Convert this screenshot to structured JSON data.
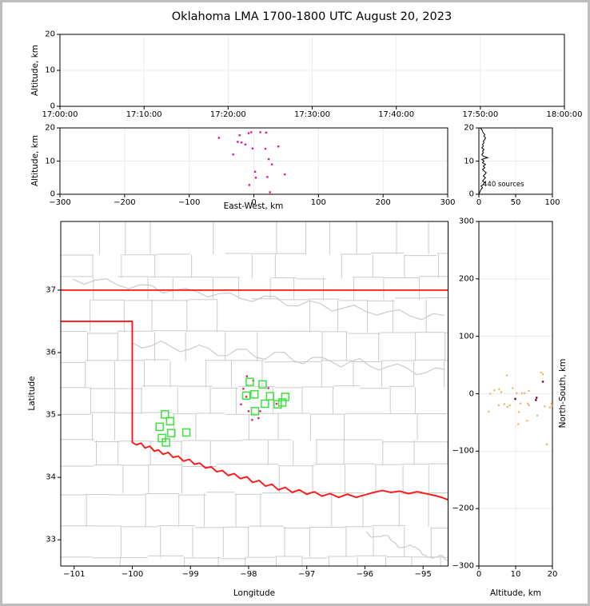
{
  "title": "Oklahoma LMA 1700-1800 UTC August 20, 2023",
  "colors": {
    "source_magenta": "#e8148c",
    "source_orange": "#f0b274",
    "source_maroon": "#6e0a1e",
    "station_green": "#3de23d",
    "state_border_red": "#ff1515",
    "county_gray": "#cbcbcb",
    "grid_gray": "#ececec",
    "frame_black": "#000000",
    "histogram_black": "#111111"
  },
  "chart_data": [
    {
      "id": "time_height",
      "type": "scatter",
      "ylabel": "Altitude, km",
      "xticks": [
        "17:00:00",
        "17:10:00",
        "17:20:00",
        "17:30:00",
        "17:40:00",
        "17:50:00",
        "18:00:00"
      ],
      "yticks": [
        0,
        10,
        20
      ],
      "ylim": [
        0,
        20
      ],
      "points": []
    },
    {
      "id": "ew_height",
      "type": "scatter",
      "xlabel": "East-West, km",
      "ylabel": "Altitude, km",
      "xlim": [
        -300,
        300
      ],
      "xticks": [
        -300,
        -200,
        -100,
        0,
        100,
        200,
        300
      ],
      "ylim": [
        0,
        20
      ],
      "yticks": [
        0,
        10,
        20
      ],
      "points": [
        [
          -54,
          17.0
        ],
        [
          -22,
          17.8
        ],
        [
          -8,
          18.4
        ],
        [
          -4,
          18.7
        ],
        [
          10,
          18.7
        ],
        [
          19,
          18.6
        ],
        [
          -25,
          15.8
        ],
        [
          -19,
          15.6
        ],
        [
          -13,
          15.0
        ],
        [
          -2,
          13.8
        ],
        [
          18,
          13.7
        ],
        [
          38,
          14.4
        ],
        [
          -32,
          12.0
        ],
        [
          23,
          10.6
        ],
        [
          28,
          9.0
        ],
        [
          2,
          6.8
        ],
        [
          3,
          5.0
        ],
        [
          21,
          5.2
        ],
        [
          48,
          6.0
        ],
        [
          -7,
          2.8
        ],
        [
          25,
          0.6
        ]
      ]
    },
    {
      "id": "alt_histogram",
      "type": "line",
      "annotation": "440 sources",
      "xlim": [
        0,
        100
      ],
      "xticks": [
        0,
        50,
        100
      ],
      "ylim": [
        0,
        20
      ],
      "yticks": [
        0,
        10,
        20
      ],
      "bins_alt_count": [
        [
          0,
          0
        ],
        [
          0.5,
          1
        ],
        [
          1,
          2
        ],
        [
          1.5,
          3
        ],
        [
          2,
          5
        ],
        [
          2.5,
          3
        ],
        [
          3,
          6
        ],
        [
          3.5,
          8
        ],
        [
          4,
          5
        ],
        [
          4.5,
          7
        ],
        [
          5,
          9
        ],
        [
          5.5,
          6
        ],
        [
          6,
          8
        ],
        [
          6.5,
          10
        ],
        [
          7,
          7
        ],
        [
          7.5,
          5
        ],
        [
          8,
          8
        ],
        [
          8.5,
          6
        ],
        [
          9,
          9
        ],
        [
          9.5,
          5
        ],
        [
          10,
          7
        ],
        [
          10.5,
          4
        ],
        [
          11,
          12
        ],
        [
          11.5,
          6
        ],
        [
          12,
          4
        ],
        [
          12.5,
          6
        ],
        [
          13,
          5
        ],
        [
          13.5,
          7
        ],
        [
          14,
          4
        ],
        [
          14.5,
          6
        ],
        [
          15,
          5
        ],
        [
          15.5,
          7
        ],
        [
          16,
          6
        ],
        [
          16.5,
          8
        ],
        [
          17,
          9
        ],
        [
          17.5,
          7
        ],
        [
          18,
          8
        ],
        [
          18.5,
          6
        ],
        [
          19,
          5
        ],
        [
          19.5,
          4
        ],
        [
          20,
          2
        ]
      ]
    },
    {
      "id": "map",
      "type": "scatter",
      "xlabel": "Longitude",
      "ylabel": "Latitude",
      "xlim": [
        -101.23,
        -94.57
      ],
      "ylim": [
        32.58,
        38.1
      ],
      "xticks": [
        -101,
        -100,
        -99,
        -98,
        -97,
        -96,
        -95
      ],
      "yticks": [
        33,
        34,
        35,
        36,
        37
      ],
      "stations_lonlat": [
        [
          -99.44,
          35.01
        ],
        [
          -99.35,
          34.9
        ],
        [
          -99.53,
          34.81
        ],
        [
          -99.33,
          34.71
        ],
        [
          -99.07,
          34.72
        ],
        [
          -99.49,
          34.63
        ],
        [
          -99.42,
          34.56
        ],
        [
          -97.98,
          35.53
        ],
        [
          -97.76,
          35.49
        ],
        [
          -98.04,
          35.31
        ],
        [
          -97.9,
          35.33
        ],
        [
          -97.63,
          35.3
        ],
        [
          -97.37,
          35.29
        ],
        [
          -97.42,
          35.2
        ],
        [
          -97.72,
          35.18
        ],
        [
          -97.5,
          35.17
        ],
        [
          -97.89,
          35.06
        ]
      ],
      "sources_lonlat": [
        [
          -98.03,
          35.62
        ],
        [
          -97.92,
          35.55
        ],
        [
          -98.09,
          35.42
        ],
        [
          -97.66,
          35.43
        ],
        [
          -97.52,
          35.18
        ],
        [
          -97.8,
          35.06
        ],
        [
          -98.0,
          35.06
        ],
        [
          -97.83,
          34.95
        ],
        [
          -97.94,
          34.92
        ],
        [
          -98.13,
          35.17
        ],
        [
          -98.04,
          35.29
        ]
      ],
      "oklahoma_border": {
        "north_border_lat": 37.0,
        "panhandle_south_lat": 36.5,
        "west_border_lon": -100.0,
        "red_river_lonlat": [
          [
            -100.0,
            34.56
          ],
          [
            -99.93,
            34.52
          ],
          [
            -99.85,
            34.55
          ],
          [
            -99.78,
            34.47
          ],
          [
            -99.7,
            34.5
          ],
          [
            -99.62,
            34.42
          ],
          [
            -99.55,
            34.44
          ],
          [
            -99.47,
            34.37
          ],
          [
            -99.38,
            34.4
          ],
          [
            -99.3,
            34.32
          ],
          [
            -99.21,
            34.34
          ],
          [
            -99.12,
            34.26
          ],
          [
            -99.02,
            34.29
          ],
          [
            -98.93,
            34.21
          ],
          [
            -98.84,
            34.23
          ],
          [
            -98.74,
            34.15
          ],
          [
            -98.64,
            34.17
          ],
          [
            -98.55,
            34.09
          ],
          [
            -98.45,
            34.11
          ],
          [
            -98.35,
            34.03
          ],
          [
            -98.25,
            34.06
          ],
          [
            -98.14,
            33.98
          ],
          [
            -98.03,
            34.01
          ],
          [
            -97.93,
            33.92
          ],
          [
            -97.82,
            33.95
          ],
          [
            -97.71,
            33.86
          ],
          [
            -97.6,
            33.89
          ],
          [
            -97.49,
            33.8
          ],
          [
            -97.37,
            33.84
          ],
          [
            -97.25,
            33.76
          ],
          [
            -97.13,
            33.8
          ],
          [
            -97.0,
            33.73
          ],
          [
            -96.87,
            33.77
          ],
          [
            -96.74,
            33.7
          ],
          [
            -96.6,
            33.74
          ],
          [
            -96.45,
            33.68
          ],
          [
            -96.3,
            33.73
          ],
          [
            -96.15,
            33.68
          ],
          [
            -96.0,
            33.72
          ],
          [
            -95.85,
            33.76
          ],
          [
            -95.7,
            33.79
          ],
          [
            -95.55,
            33.76
          ],
          [
            -95.4,
            33.78
          ],
          [
            -95.25,
            33.74
          ],
          [
            -95.1,
            33.77
          ],
          [
            -94.95,
            33.74
          ],
          [
            -94.8,
            33.71
          ],
          [
            -94.68,
            33.68
          ],
          [
            -94.57,
            33.64
          ]
        ]
      }
    },
    {
      "id": "ns_height",
      "type": "scatter",
      "xlabel": "Altitude, km",
      "ylabel": "North-South, km",
      "xlim": [
        0,
        20
      ],
      "xticks": [
        0,
        10,
        20
      ],
      "ylim": [
        -300,
        300
      ],
      "yticks": [
        -300,
        -200,
        -100,
        0,
        100,
        200,
        300
      ],
      "orange_points": [
        [
          3.1,
          0
        ],
        [
          6.1,
          3
        ],
        [
          4.2,
          6
        ],
        [
          5.5,
          8
        ],
        [
          7.6,
          32
        ],
        [
          9.2,
          10
        ],
        [
          10.3,
          1
        ],
        [
          12.4,
          1
        ],
        [
          11.7,
          1
        ],
        [
          13.6,
          5
        ],
        [
          16.9,
          37
        ],
        [
          17.4,
          34
        ],
        [
          5.4,
          -20
        ],
        [
          6.9,
          -18
        ],
        [
          8.4,
          -20
        ],
        [
          7.8,
          -23
        ],
        [
          11.3,
          -17
        ],
        [
          13.3,
          -17
        ],
        [
          13.6,
          -20
        ],
        [
          17.9,
          -22
        ],
        [
          19.7,
          -17
        ],
        [
          19.3,
          -24
        ],
        [
          2.7,
          -31
        ],
        [
          10.9,
          -32
        ],
        [
          15.9,
          -38
        ],
        [
          13.1,
          -47
        ],
        [
          10.7,
          -53
        ],
        [
          18.5,
          -88
        ],
        [
          19.8,
          -21
        ]
      ],
      "maroon_points": [
        [
          15.7,
          -7
        ],
        [
          17.4,
          21
        ],
        [
          9.9,
          -9
        ],
        [
          15.5,
          -11
        ]
      ]
    }
  ]
}
